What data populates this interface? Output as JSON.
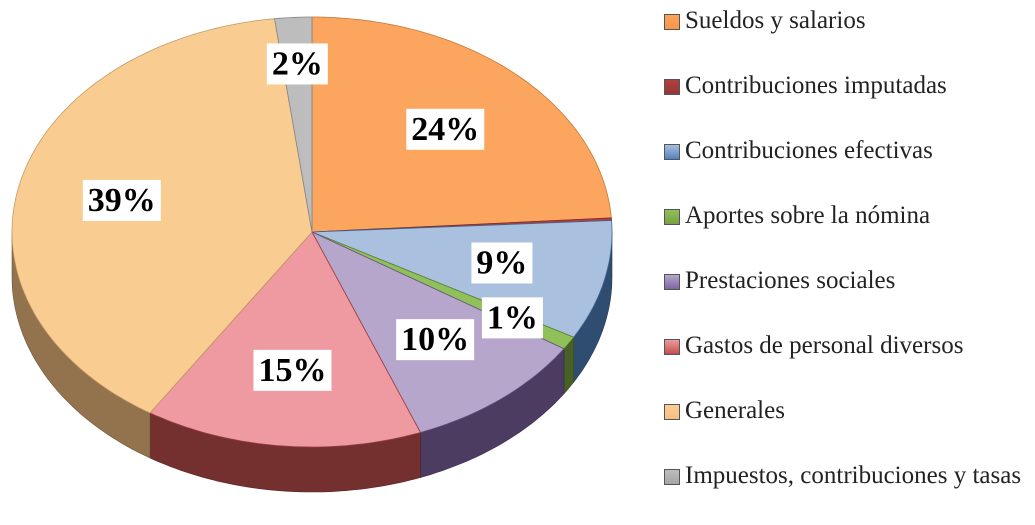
{
  "chart_data": {
    "type": "pie3d",
    "categories": [
      "Sueldos y salarios",
      "Contribuciones imputadas",
      "Contribuciones efectivas",
      "Aportes sobre la nómina",
      "Prestaciones sociales",
      "Gastos de personal diversos",
      "Generales",
      "Impuestos, contribuciones y tasas"
    ],
    "values": [
      24,
      0.2,
      9,
      1,
      10,
      15,
      39,
      2
    ],
    "value_labels": [
      "24%",
      null,
      "9%",
      "1%",
      "10%",
      "15%",
      "39%",
      "2%"
    ],
    "colors": [
      "#f79646",
      "#953735",
      "#4f81bd",
      "#77a040",
      "#8064a2",
      "#c0504d",
      "#f5c080",
      "#a5a5a5"
    ],
    "top_colors": [
      "#fba55e",
      "#b04040",
      "#a9c0de",
      "#8fc05a",
      "#b6a6cc",
      "#ee9aa0",
      "#f9cd92",
      "#bdbdbd"
    ],
    "legend": "right"
  }
}
